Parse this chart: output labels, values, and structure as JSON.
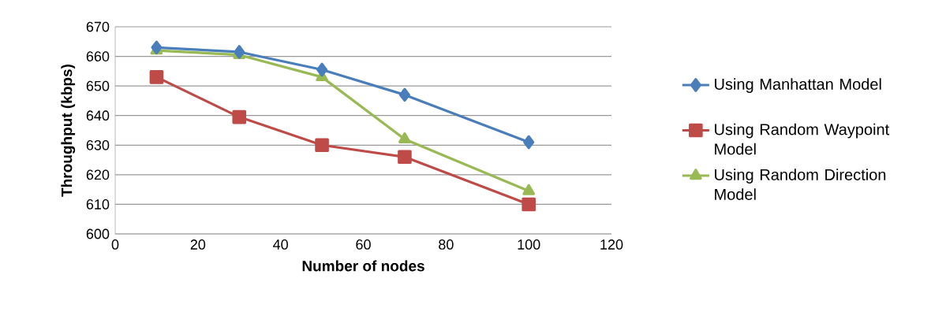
{
  "chart_data": {
    "type": "line",
    "xlabel": "Number of nodes",
    "ylabel": "Throughput (kbps)",
    "x": [
      10,
      30,
      50,
      70,
      100
    ],
    "xlim": [
      0,
      120
    ],
    "xticks": [
      0,
      20,
      40,
      60,
      80,
      100,
      120
    ],
    "ylim": [
      600,
      670
    ],
    "yticks": [
      600,
      610,
      620,
      630,
      640,
      650,
      660,
      670
    ],
    "grid": "y",
    "legend": "right",
    "series": [
      {
        "name": "Using Manhattan Model",
        "color": "#4a7ebb",
        "marker": "diamond",
        "values": [
          663,
          661.5,
          655.5,
          647,
          631
        ]
      },
      {
        "name": "Using Random Waypoint Model",
        "color": "#be4b48",
        "marker": "square",
        "values": [
          653,
          639.5,
          630,
          626,
          610
        ]
      },
      {
        "name": "Using Random Direction Model",
        "color": "#98b954",
        "marker": "triangle",
        "values": [
          662,
          660.5,
          653,
          632,
          614.5
        ]
      }
    ]
  }
}
